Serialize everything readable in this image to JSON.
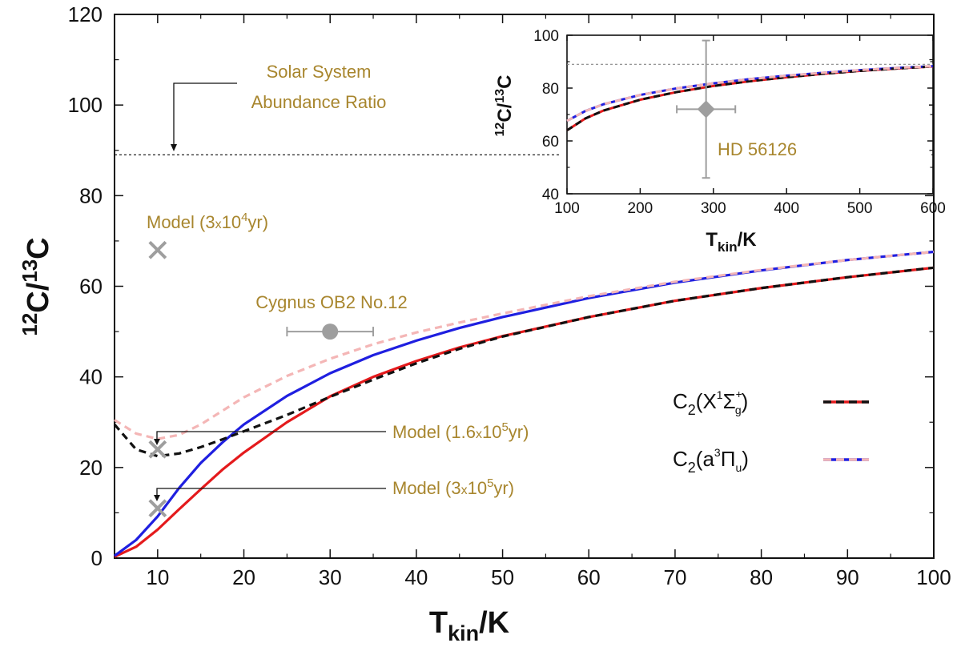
{
  "colors": {
    "annotation": "#a8862e",
    "marker": "#9e9e9e",
    "red": "#e41a1c",
    "blue": "#1f1fe0",
    "black": "#111111",
    "pink": "#f4b6b6"
  },
  "chart_data": [
    {
      "type": "line",
      "xlabel_main": "T",
      "xlabel_sub": "kin",
      "xlabel_tail": "/K",
      "ylabel_sup1": "12",
      "ylabel_mid": "C/",
      "ylabel_sup2": "13",
      "ylabel_tail": "C",
      "xlim": [
        5,
        100
      ],
      "ylim": [
        0,
        120
      ],
      "x_ticks": [
        "10",
        "20",
        "30",
        "40",
        "50",
        "60",
        "70",
        "80",
        "90",
        "100"
      ],
      "y_ticks": [
        "0",
        "20",
        "40",
        "60",
        "80",
        "100",
        "120"
      ],
      "grid": false,
      "x": [
        5,
        7.5,
        10,
        12.5,
        15,
        17.5,
        20,
        25,
        30,
        35,
        40,
        45,
        50,
        60,
        70,
        80,
        90,
        100
      ],
      "series": [
        {
          "id": "x_state_solid",
          "color": "red",
          "style": "solid",
          "values": [
            0.3,
            2.5,
            6.3,
            10.8,
            15.2,
            19.5,
            23.3,
            30.0,
            35.7,
            40.0,
            43.5,
            46.5,
            49.0,
            53.2,
            56.8,
            59.6,
            62.0,
            64.1
          ]
        },
        {
          "id": "x_state_dashed",
          "color": "black",
          "style": "dashed",
          "values": [
            29.5,
            24.0,
            22.5,
            23.1,
            24.5,
            26.2,
            28.0,
            31.6,
            35.6,
            39.4,
            43.0,
            46.2,
            48.9,
            53.2,
            56.8,
            59.6,
            62.0,
            64.1
          ]
        },
        {
          "id": "a_state_solid",
          "color": "blue",
          "style": "solid",
          "values": [
            0.5,
            4.0,
            9.2,
            15.5,
            21.0,
            25.5,
            29.5,
            35.8,
            40.8,
            44.8,
            48.0,
            50.8,
            53.2,
            57.4,
            60.8,
            63.5,
            65.8,
            67.6
          ]
        },
        {
          "id": "a_state_dashed",
          "color": "pink",
          "style": "dashed",
          "values": [
            30.5,
            27.5,
            26.3,
            27.2,
            29.5,
            32.5,
            35.5,
            40.2,
            44.0,
            47.2,
            49.8,
            52.0,
            54.0,
            57.8,
            61.0,
            63.6,
            65.8,
            67.6
          ]
        }
      ],
      "solar_ratio": 89,
      "points": [
        {
          "label": "Cygnus OB2 No.12",
          "x": 30,
          "y": 50,
          "xerr": 5,
          "marker": "circle"
        },
        {
          "label_pre": "Model (3",
          "label_x": "x",
          "label_num": "10",
          "label_sup": "4",
          "label_post": "yr)",
          "x": 10,
          "y": 68,
          "marker": "x"
        },
        {
          "label_pre": "Model (1.6",
          "label_x": "x",
          "label_num": "10",
          "label_sup": "5",
          "label_post": "yr)",
          "x": 10,
          "y": 24,
          "marker": "x"
        },
        {
          "label_pre": "Model (3",
          "label_x": "x",
          "label_num": "10",
          "label_sup": "5",
          "label_post": "yr)",
          "x": 10,
          "y": 11,
          "marker": "x"
        }
      ],
      "solar_label_line1": "Solar System",
      "solar_label_line2": "Abundance Ratio",
      "legend": {
        "placement": "right",
        "entry1": {
          "pre": "C",
          "sub2": "2",
          "open": "(X",
          "sup1": "1",
          "sym": "Σ",
          "sup_plus": "+",
          "sub_g": "g",
          "close": ")"
        },
        "entry2": {
          "pre": "C",
          "sub2": "2",
          "open": "(a",
          "sup3": "3",
          "sym": "Π",
          "sub_u": "u",
          "close": ")"
        }
      }
    },
    {
      "type": "line",
      "inset": true,
      "xlabel_main": "T",
      "xlabel_sub": "kin",
      "xlabel_tail": "/K",
      "ylabel_sup1": "12",
      "ylabel_mid": "C/",
      "ylabel_sup2": "13",
      "ylabel_tail": "C",
      "xlim": [
        100,
        600
      ],
      "ylim": [
        40,
        100
      ],
      "x_ticks": [
        "100",
        "200",
        "300",
        "400",
        "500",
        "600"
      ],
      "y_ticks": [
        "40",
        "60",
        "80",
        "100"
      ],
      "x": [
        100,
        125,
        150,
        200,
        250,
        300,
        350,
        400,
        450,
        500,
        550,
        600
      ],
      "series": [
        {
          "id": "inset_x_solid",
          "color": "red",
          "style": "solid",
          "values": [
            64.0,
            68.5,
            71.5,
            75.6,
            78.5,
            80.8,
            82.6,
            84.1,
            85.4,
            86.5,
            87.4,
            88.2
          ]
        },
        {
          "id": "inset_x_dashed",
          "color": "black",
          "style": "dashed",
          "values": [
            64.0,
            68.5,
            71.5,
            75.6,
            78.5,
            80.8,
            82.6,
            84.1,
            85.4,
            86.5,
            87.4,
            88.2
          ]
        },
        {
          "id": "inset_a_solid",
          "color": "blue",
          "style": "solid",
          "values": [
            67.6,
            71.3,
            73.9,
            77.4,
            79.9,
            81.8,
            83.4,
            84.7,
            85.8,
            86.8,
            87.6,
            88.3
          ]
        },
        {
          "id": "inset_a_dashed",
          "color": "pink",
          "style": "dashed",
          "values": [
            67.6,
            71.3,
            73.9,
            77.4,
            79.9,
            81.8,
            83.4,
            84.7,
            85.8,
            86.8,
            87.6,
            88.3
          ]
        }
      ],
      "solar_ratio": 89,
      "point": {
        "label": "HD 56126",
        "x": 290,
        "y": 72,
        "xerr": 40,
        "yerr": 26,
        "marker": "diamond"
      }
    }
  ]
}
